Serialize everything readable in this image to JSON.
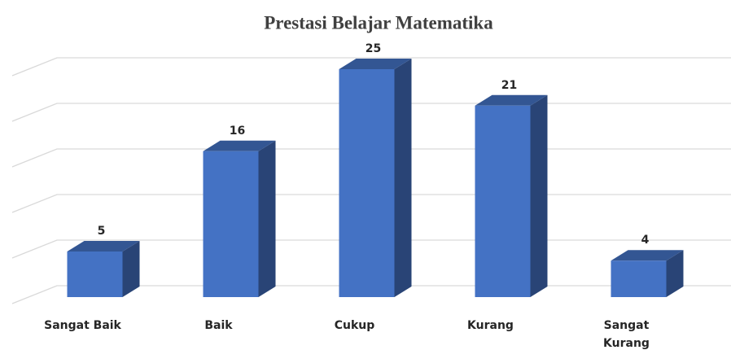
{
  "chart_data": {
    "type": "bar",
    "title": "Prestasi Belajar Matematika",
    "categories": [
      "Sangat Baik",
      "Baik",
      "Cukup",
      "Kurang",
      "Sangat Kurang"
    ],
    "values": [
      5,
      16,
      25,
      21,
      4
    ],
    "color": "#4472c4",
    "ylim": [
      0,
      25
    ],
    "yticks": [
      0,
      5,
      10,
      15,
      20,
      25
    ],
    "grid": true
  }
}
